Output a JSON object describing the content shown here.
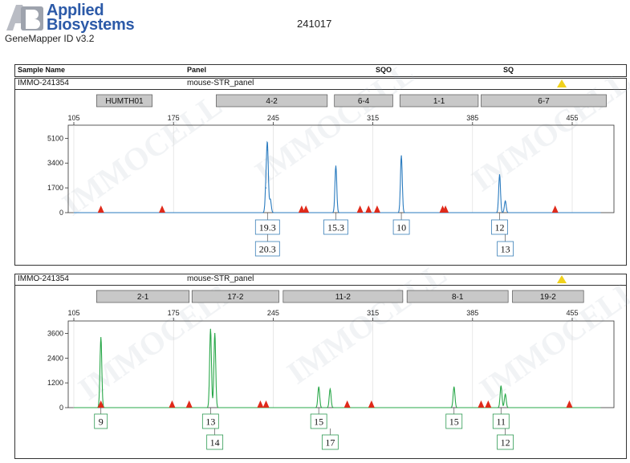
{
  "header": {
    "brand_line1": "Applied",
    "brand_line2": "Biosystems",
    "product": "GeneMapper ID v3.2",
    "run_id": "241017"
  },
  "columns": {
    "sample_name": "Sample Name",
    "panel": "Panel",
    "sqo": "SQO",
    "sq": "SQ"
  },
  "colors": {
    "blue_dye": "#2a7bbf",
    "green_dye": "#2aa84a",
    "size_std": "#e02a1a",
    "warning": "#f1d21c",
    "marker_fill": "#c8c8c8"
  },
  "watermark": "IMMOCELL",
  "chart_data": [
    {
      "type": "line",
      "dye": "blue",
      "sample": "IMMO-241354",
      "panel": "mouse-STR_panel",
      "flag": "warning-triangle",
      "xlim": [
        105,
        455
      ],
      "x_ticks": [
        105,
        175,
        245,
        315,
        385,
        455
      ],
      "ylim": [
        0,
        6000
      ],
      "y_ticks": [
        0,
        1700,
        3400,
        5100
      ],
      "markers": [
        {
          "name": "HUMTH01",
          "start": 121,
          "end": 160
        },
        {
          "name": "4-2",
          "start": 205,
          "end": 283
        },
        {
          "name": "6-4",
          "start": 288,
          "end": 329
        },
        {
          "name": "1-1",
          "start": 334,
          "end": 389
        },
        {
          "name": "6-7",
          "start": 391,
          "end": 479
        }
      ],
      "peaks": [
        {
          "x": 240,
          "y": 1700
        },
        {
          "x": 241,
          "y": 4300
        },
        {
          "x": 243,
          "y": 900
        },
        {
          "x": 289,
          "y": 3200
        },
        {
          "x": 335,
          "y": 3900
        },
        {
          "x": 404,
          "y": 2600
        },
        {
          "x": 408,
          "y": 800
        }
      ],
      "alleles": [
        {
          "label": "19.3",
          "x": 241,
          "row": 1
        },
        {
          "label": "20.3",
          "x": 241,
          "row": 2
        },
        {
          "label": "15.3",
          "x": 289,
          "row": 1
        },
        {
          "label": "10",
          "x": 335,
          "row": 1
        },
        {
          "label": "12",
          "x": 404,
          "row": 1
        },
        {
          "label": "13",
          "x": 408,
          "row": 2
        }
      ],
      "size_standard": [
        124,
        167,
        265,
        268,
        306,
        312,
        318,
        364,
        366,
        443
      ]
    },
    {
      "type": "line",
      "dye": "green",
      "sample": "IMMO-241354",
      "panel": "mouse-STR_panel",
      "flag": "warning-triangle",
      "xlim": [
        105,
        455
      ],
      "x_ticks": [
        105,
        175,
        245,
        315,
        385,
        455
      ],
      "ylim": [
        0,
        4200
      ],
      "y_ticks": [
        0,
        1200,
        2400,
        3600
      ],
      "markers": [
        {
          "name": "2-1",
          "start": 121,
          "end": 186
        },
        {
          "name": "17-2",
          "start": 188,
          "end": 249
        },
        {
          "name": "11-2",
          "start": 252,
          "end": 336
        },
        {
          "name": "8-1",
          "start": 339,
          "end": 410
        },
        {
          "name": "19-2",
          "start": 413,
          "end": 463
        }
      ],
      "peaks": [
        {
          "x": 124,
          "y": 3400
        },
        {
          "x": 201,
          "y": 3800
        },
        {
          "x": 204,
          "y": 3600
        },
        {
          "x": 277,
          "y": 1000
        },
        {
          "x": 285,
          "y": 900
        },
        {
          "x": 372,
          "y": 1000
        },
        {
          "x": 405,
          "y": 1050
        },
        {
          "x": 408,
          "y": 650
        }
      ],
      "alleles": [
        {
          "label": "9",
          "x": 124,
          "row": 1
        },
        {
          "label": "13",
          "x": 201,
          "row": 1
        },
        {
          "label": "14",
          "x": 204,
          "row": 2
        },
        {
          "label": "15",
          "x": 277,
          "row": 1
        },
        {
          "label": "17",
          "x": 285,
          "row": 2
        },
        {
          "label": "15",
          "x": 372,
          "row": 1
        },
        {
          "label": "11",
          "x": 405,
          "row": 1
        },
        {
          "label": "12",
          "x": 408,
          "row": 2
        }
      ],
      "size_standard": [
        124,
        174,
        186,
        236,
        240,
        297,
        314,
        391,
        396,
        453
      ]
    }
  ]
}
